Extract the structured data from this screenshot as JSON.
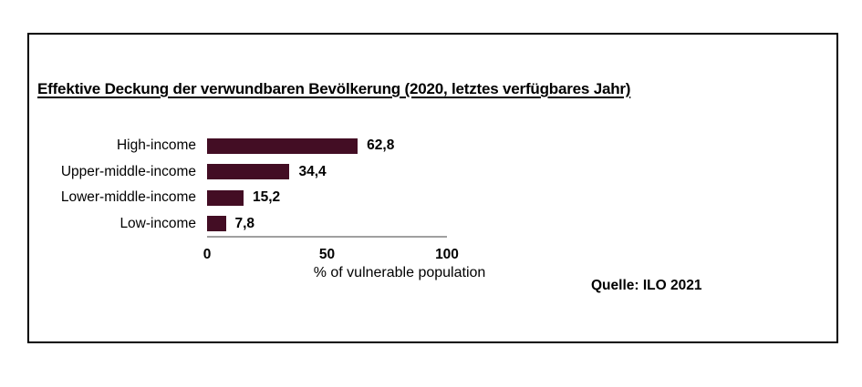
{
  "title": "Effektive Deckung der verwundbaren Bevölkerung (2020, letztes verfügbares Jahr)",
  "source": "Quelle: ILO 2021",
  "chart_data": {
    "type": "bar",
    "orientation": "horizontal",
    "title": "Effektive Deckung der verwundbaren Bevölkerung (2020, letztes verfügbares Jahr)",
    "categories": [
      "High-income",
      "Upper-middle-income",
      "Lower-middle-income",
      "Low-income"
    ],
    "values": [
      62.8,
      34.4,
      15.2,
      7.8
    ],
    "value_labels": [
      "62,8",
      "34,4",
      "15,2",
      "7,8"
    ],
    "xlabel": "% of vulnerable population",
    "ylabel": "",
    "xticks": [
      0,
      50,
      100
    ],
    "xlim": [
      0,
      100
    ],
    "grid": false,
    "legend_position": "none",
    "bar_color": "#430d24",
    "axis_line_color": "#a0a0a0",
    "text_color": "#000000"
  }
}
